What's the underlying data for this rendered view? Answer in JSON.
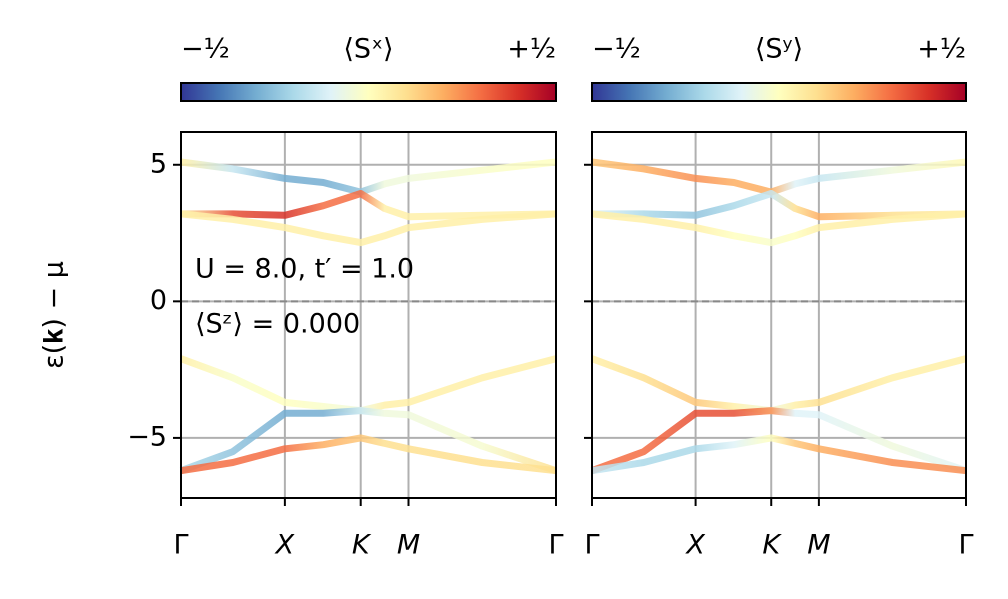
{
  "chart_data": [
    {
      "type": "band",
      "colorbar_label": "⟨Sˣ⟩",
      "ylabel": "ε(𝐤) − μ",
      "annotations": [
        "U = 8.0, t′ = 1.0",
        "⟨Sᶻ⟩ = 0.000"
      ],
      "clim": [
        -0.5,
        0.5
      ],
      "cticks": [
        {
          "value": -0.5,
          "label": "−½"
        },
        {
          "value": 0.5,
          "label": "+½"
        }
      ],
      "colormap": [
        "#313695",
        "#4575b4",
        "#74add1",
        "#abd9e9",
        "#e0f3f8",
        "#ffffbf",
        "#fee090",
        "#fdae61",
        "#f46d43",
        "#d73027",
        "#a50026"
      ],
      "xlim": [
        0,
        3.61
      ],
      "xticks": [
        {
          "value": 0,
          "label": "Γ"
        },
        {
          "value": 1,
          "label": "X"
        },
        {
          "value": 1.73,
          "label": "K"
        },
        {
          "value": 2.19,
          "label": "M"
        },
        {
          "value": 3.61,
          "label": "Γ"
        }
      ],
      "ylim": [
        -7.2,
        6.2
      ],
      "yticks": [
        {
          "value": -5,
          "label": "−5"
        },
        0,
        5
      ],
      "grid": true,
      "zero_line": true,
      "x": [
        0,
        0.5,
        1,
        1.37,
        1.73,
        1.96,
        2.19,
        2.9,
        3.61
      ],
      "series": [
        {
          "values": [
            5.1,
            4.85,
            4.5,
            4.35,
            4.0,
            4.3,
            4.5,
            4.8,
            5.1
          ],
          "spin": [
            0.05,
            -0.15,
            -0.3,
            -0.3,
            -0.25,
            -0.05,
            -0.05,
            -0.02,
            0.0
          ]
        },
        {
          "values": [
            3.2,
            3.2,
            3.15,
            3.5,
            3.95,
            3.4,
            3.1,
            3.15,
            3.2
          ],
          "spin": [
            0.05,
            0.35,
            0.4,
            0.3,
            0.3,
            0.05,
            0.05,
            0.05,
            0.05
          ]
        },
        {
          "values": [
            3.2,
            3.0,
            2.7,
            2.4,
            2.15,
            2.4,
            2.7,
            3.0,
            3.2
          ],
          "spin": [
            0.05,
            0.05,
            0.05,
            0.05,
            0.05,
            0.05,
            0.05,
            0.05,
            0.05
          ]
        },
        {
          "values": [
            -2.1,
            -2.8,
            -3.7,
            -3.85,
            -4.0,
            -3.8,
            -3.7,
            -2.8,
            -2.1
          ],
          "spin": [
            0.05,
            -0.02,
            0.0,
            -0.02,
            -0.05,
            0.05,
            0.05,
            0.05,
            0.05
          ]
        },
        {
          "values": [
            -6.2,
            -5.5,
            -4.1,
            -4.1,
            -4.0,
            -4.1,
            -4.15,
            -5.3,
            -6.2
          ],
          "spin": [
            -0.2,
            -0.25,
            -0.3,
            -0.3,
            -0.15,
            -0.05,
            -0.05,
            -0.03,
            0.1
          ]
        },
        {
          "values": [
            -6.2,
            -5.9,
            -5.4,
            -5.25,
            -5.0,
            -5.2,
            -5.4,
            -5.9,
            -6.2
          ],
          "spin": [
            0.3,
            0.3,
            0.3,
            0.2,
            0.15,
            0.1,
            0.1,
            0.1,
            0.1
          ]
        }
      ]
    },
    {
      "type": "band",
      "colorbar_label": "⟨Sʸ⟩",
      "clim": [
        -0.5,
        0.5
      ],
      "cticks": [
        {
          "value": -0.5,
          "label": "−½"
        },
        {
          "value": 0.5,
          "label": "+½"
        }
      ],
      "colormap": [
        "#313695",
        "#4575b4",
        "#74add1",
        "#abd9e9",
        "#e0f3f8",
        "#ffffbf",
        "#fee090",
        "#fdae61",
        "#f46d43",
        "#d73027",
        "#a50026"
      ],
      "xlim": [
        0,
        3.61
      ],
      "xticks": [
        {
          "value": 0,
          "label": "Γ"
        },
        {
          "value": 1,
          "label": "X"
        },
        {
          "value": 1.73,
          "label": "K"
        },
        {
          "value": 2.19,
          "label": "M"
        },
        {
          "value": 3.61,
          "label": "Γ"
        }
      ],
      "ylim": [
        -7.2,
        6.2
      ],
      "yticks": [
        -5,
        0,
        5
      ],
      "grid": true,
      "zero_line": true,
      "x": [
        0,
        0.5,
        1,
        1.37,
        1.73,
        1.96,
        2.19,
        2.9,
        3.61
      ],
      "series": [
        {
          "values": [
            5.1,
            4.85,
            4.5,
            4.35,
            4.0,
            4.3,
            4.5,
            4.8,
            5.1
          ],
          "spin": [
            0.15,
            0.2,
            0.25,
            0.2,
            0.2,
            -0.1,
            -0.15,
            -0.05,
            0.02
          ]
        },
        {
          "values": [
            3.2,
            3.2,
            3.15,
            3.5,
            3.95,
            3.4,
            3.1,
            3.15,
            3.2
          ],
          "spin": [
            -0.1,
            -0.2,
            -0.25,
            -0.2,
            -0.15,
            0.1,
            0.2,
            0.1,
            0.05
          ]
        },
        {
          "values": [
            3.2,
            3.0,
            2.7,
            2.4,
            2.15,
            2.4,
            2.7,
            3.0,
            3.2
          ],
          "spin": [
            0.05,
            0.05,
            0.05,
            0.0,
            -0.02,
            0.0,
            0.05,
            0.05,
            0.05
          ]
        },
        {
          "values": [
            -2.1,
            -2.8,
            -3.7,
            -3.85,
            -4.0,
            -3.8,
            -3.7,
            -2.8,
            -2.1
          ],
          "spin": [
            0.05,
            0.1,
            0.15,
            0.05,
            -0.05,
            0.05,
            0.1,
            0.05,
            0.05
          ]
        },
        {
          "values": [
            -6.2,
            -5.5,
            -4.1,
            -4.1,
            -4.0,
            -4.1,
            -4.15,
            -5.3,
            -6.2
          ],
          "spin": [
            0.3,
            0.3,
            0.35,
            0.35,
            0.25,
            -0.1,
            -0.1,
            -0.05,
            -0.1
          ]
        },
        {
          "values": [
            -6.2,
            -5.9,
            -5.4,
            -5.25,
            -5.0,
            -5.2,
            -5.4,
            -5.9,
            -6.2
          ],
          "spin": [
            -0.15,
            -0.2,
            -0.2,
            -0.1,
            0.0,
            0.15,
            0.2,
            0.25,
            0.25
          ]
        }
      ]
    }
  ]
}
